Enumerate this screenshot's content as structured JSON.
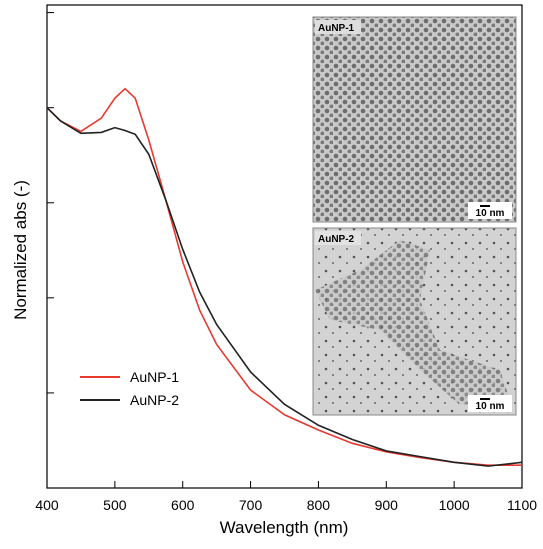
{
  "chart_data": {
    "type": "line",
    "x_label": "Wavelength (nm)",
    "y_label": "Normalized abs (-)",
    "x": [
      400,
      420,
      450,
      480,
      500,
      515,
      530,
      550,
      575,
      600,
      625,
      650,
      700,
      750,
      800,
      850,
      900,
      950,
      1000,
      1050,
      1100
    ],
    "series": [
      {
        "name": "AuNP-1",
        "color": "#e8392f",
        "values": [
          4.0,
          3.86,
          3.75,
          3.89,
          4.1,
          4.2,
          4.1,
          3.66,
          3.03,
          2.38,
          1.87,
          1.51,
          1.03,
          0.77,
          0.61,
          0.47,
          0.38,
          0.32,
          0.27,
          0.24,
          0.24
        ]
      },
      {
        "name": "AuNP-2",
        "color": "#222222",
        "values": [
          4.0,
          3.86,
          3.73,
          3.74,
          3.79,
          3.76,
          3.72,
          3.51,
          3.03,
          2.51,
          2.06,
          1.72,
          1.22,
          0.88,
          0.66,
          0.51,
          0.39,
          0.33,
          0.27,
          0.23,
          0.27
        ]
      }
    ],
    "xlim": [
      400,
      1100
    ],
    "xticks": [
      400,
      500,
      600,
      700,
      800,
      900,
      1000,
      1100
    ],
    "ylim": [
      0,
      5.08
    ],
    "yticks": [
      0,
      1,
      2,
      3,
      4,
      5
    ],
    "legend": "lower-left",
    "insets": [
      {
        "label": "AuNP-1",
        "scale_bar": "10 nm"
      },
      {
        "label": "AuNP-2",
        "scale_bar": "10 nm"
      }
    ]
  }
}
